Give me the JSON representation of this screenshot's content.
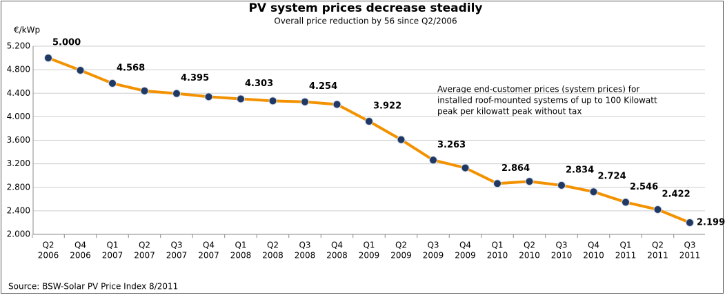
{
  "chart_data": {
    "type": "line",
    "title": "PV system prices decrease steadily",
    "subtitle": "Overall price reduction by 56  since Q2/2006",
    "y_label": "€/kWp",
    "annotation": [
      "Average end-customer prices (system prices) for",
      "installed roof-mounted systems of up to 100 Kilowatt",
      "peak per kilowatt peak without tax"
    ],
    "source": "Source: BSW-Solar  PV Price Index 8/2011",
    "categories": [
      [
        "Q2",
        "2006"
      ],
      [
        "Q4",
        "2006"
      ],
      [
        "Q1",
        "2007"
      ],
      [
        "Q2",
        "2007"
      ],
      [
        "Q3",
        "2007"
      ],
      [
        "Q4",
        "2007"
      ],
      [
        "Q1",
        "2008"
      ],
      [
        "Q2",
        "2008"
      ],
      [
        "Q3",
        "2008"
      ],
      [
        "Q4",
        "2008"
      ],
      [
        "Q1",
        "2009"
      ],
      [
        "Q2",
        "2009"
      ],
      [
        "Q3",
        "2009"
      ],
      [
        "Q4",
        "2009"
      ],
      [
        "Q1",
        "2010"
      ],
      [
        "Q2",
        "2010"
      ],
      [
        "Q3",
        "2010"
      ],
      [
        "Q4",
        "2010"
      ],
      [
        "Q1",
        "2011"
      ],
      [
        "Q2",
        "2011"
      ],
      [
        "Q3",
        "2011"
      ]
    ],
    "series": [
      {
        "color": "#f39200",
        "marker_color": "#1f3864",
        "values": [
          5.0,
          4.79,
          4.568,
          4.44,
          4.395,
          4.34,
          4.303,
          4.27,
          4.254,
          4.21,
          3.922,
          3.61,
          3.263,
          3.13,
          2.864,
          2.9,
          2.834,
          2.724,
          2.546,
          2.422,
          2.199
        ],
        "value_labels": [
          "5.000",
          null,
          "4.568",
          null,
          "4.395",
          null,
          "4.303",
          null,
          "4.254",
          null,
          "3.922",
          null,
          "3.263",
          null,
          "2.864",
          null,
          "2.834",
          "2.724",
          "2.546",
          "2.422",
          "2.199"
        ]
      }
    ],
    "ylim": [
      2.0,
      5.2
    ],
    "yticks": [
      {
        "value": 2.0,
        "label": "2.000"
      },
      {
        "value": 2.4,
        "label": "2.400"
      },
      {
        "value": 2.8,
        "label": "2.800"
      },
      {
        "value": 3.2,
        "label": "3.200"
      },
      {
        "value": 3.6,
        "label": "3.600"
      },
      {
        "value": 4.0,
        "label": "4.000"
      },
      {
        "value": 4.4,
        "label": "4.400"
      },
      {
        "value": 4.8,
        "label": "4.800"
      },
      {
        "value": 5.2,
        "label": "5.200"
      }
    ],
    "grid": true
  }
}
